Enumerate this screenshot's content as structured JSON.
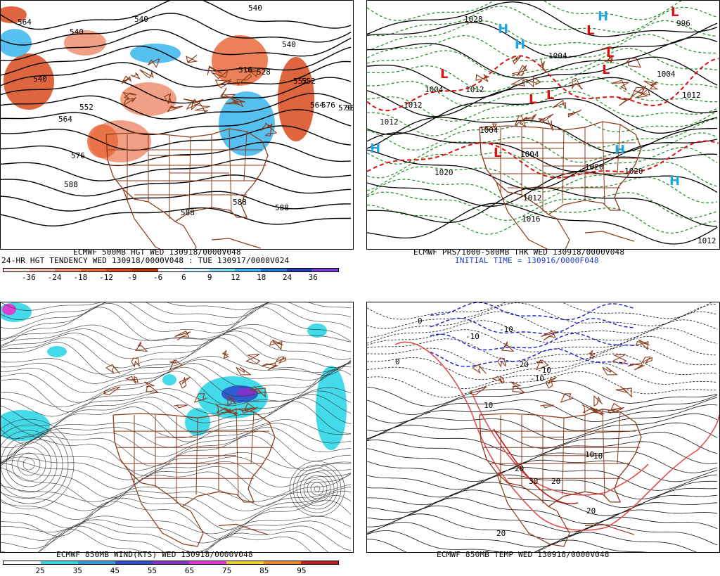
{
  "panels": {
    "hgt500": {
      "contour_labels": [
        "540",
        "540",
        "540",
        "540",
        "552",
        "552",
        "564",
        "564",
        "576",
        "576",
        "588",
        "588",
        "588",
        "588",
        "516",
        "528",
        "540",
        "552",
        "576",
        "58",
        "564"
      ],
      "caption": "ECMWF 500MB HGT WED 130918/0000V048",
      "subtitle": "24-HR HGT TENDENCY WED 130918/0000V048 : TUE 130917/0000V024",
      "legend": {
        "ticks": [
          "-36",
          "-24",
          "-18",
          "-12",
          "-9",
          "-6",
          "6",
          "9",
          "12",
          "18",
          "24",
          "36"
        ],
        "colors": [
          "#fde3df",
          "#f6b8ad",
          "#f08f70",
          "#e86a3c",
          "#d94a1c",
          "#b6390f",
          "#ffffff",
          "#cfeffd",
          "#7fd8f5",
          "#38b6ef",
          "#2574d8",
          "#1f3fb5",
          "#7b39d1"
        ]
      }
    },
    "prs": {
      "contour_labels": [
        "1028",
        "1004",
        "1012",
        "1012",
        "1020",
        "1020",
        "1004",
        "1012",
        "1016",
        "1004",
        "1012",
        "1004",
        "996",
        "1012",
        "1004",
        "1020",
        "1012"
      ],
      "high_symbol": "H",
      "low_symbol": "L",
      "caption": "ECMWF PRS/1000-500MB THK WED 130918/0000V048",
      "initial_time": "INITIAL TIME = 130916/0000F048"
    },
    "wind850": {
      "caption": "ECMWF 850MB WIND(KTS) WED 130918/0000V048",
      "legend": {
        "ticks": [
          "25",
          "35",
          "45",
          "55",
          "65",
          "75",
          "85",
          "95"
        ],
        "colors": [
          "#ffffff",
          "#2fd7e8",
          "#2a9fd8",
          "#2a4fcf",
          "#8a2fc8",
          "#ea2fd0",
          "#f4d020",
          "#f08a20",
          "#c0201a"
        ]
      }
    },
    "temp850": {
      "contour_labels": [
        "0",
        "-10",
        "-10",
        "-20",
        "-10",
        "-10",
        "0",
        "10",
        "10",
        "20",
        "30",
        "20",
        "20",
        "20",
        "10"
      ],
      "caption": "ECMWF 850MB TEMP WED 130918/0000V048"
    }
  },
  "colors": {
    "border_brown": "#8b3a1a",
    "height_black": "#000000",
    "pressure_black": "#000000",
    "thickness_green": "#1e8a1e",
    "thickness_red": "#e01010",
    "high_blue": "#23a6e0",
    "low_red": "#e01010",
    "temp_blue": "#1a1ad0",
    "temp_red": "#e05050"
  }
}
